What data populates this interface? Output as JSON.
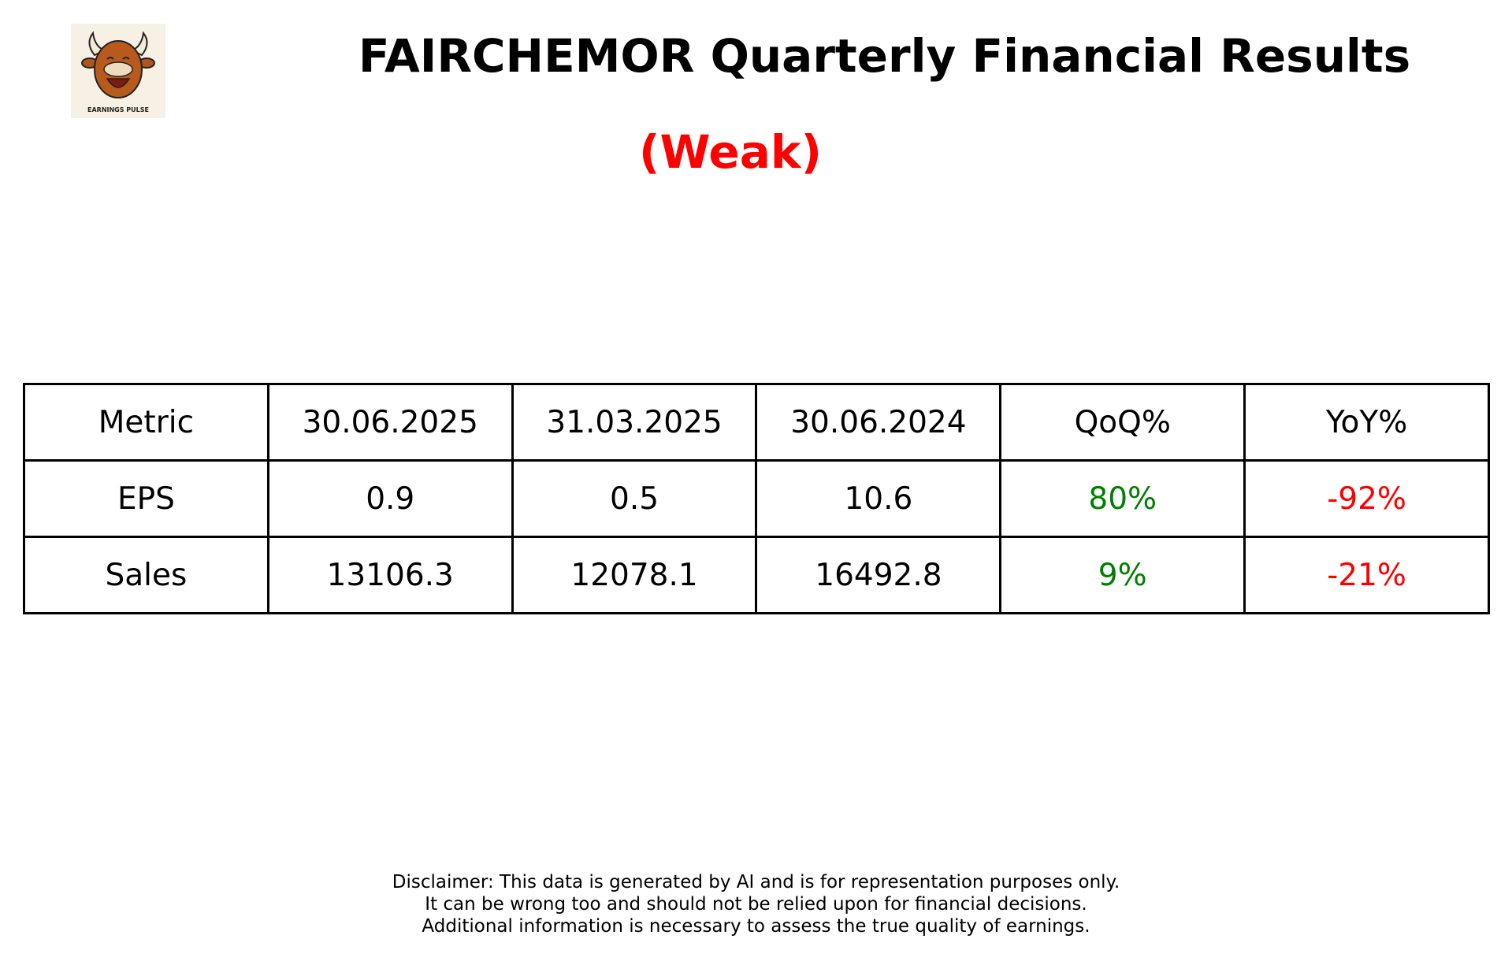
{
  "header": {
    "title": "FAIRCHEMOR Quarterly Financial Results",
    "rating": "(Weak)",
    "rating_color": "#ff0000",
    "logo_text": "EARNINGS PULSE"
  },
  "table": {
    "headers": [
      "Metric",
      "30.06.2025",
      "31.03.2025",
      "30.06.2024",
      "QoQ%",
      "YoY%"
    ],
    "rows": [
      {
        "metric": "EPS",
        "q1": "0.9",
        "q2": "0.5",
        "q3": "10.6",
        "qoq": "80%",
        "yoy": "-92%"
      },
      {
        "metric": "Sales",
        "q1": "13106.3",
        "q2": "12078.1",
        "q3": "16492.8",
        "qoq": "9%",
        "yoy": "-21%"
      }
    ],
    "positive_color": "#008000",
    "negative_color": "#ff0000"
  },
  "disclaimer": [
    "Disclaimer: This data is generated by AI and is for representation purposes only.",
    "It can be wrong too and should not be relied upon for financial decisions.",
    "Additional information is necessary to assess the true quality of earnings."
  ]
}
